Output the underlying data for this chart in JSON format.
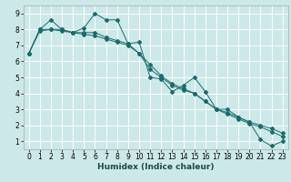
{
  "xlabel": "Humidex (Indice chaleur)",
  "bg_color": "#cce8e8",
  "grid_color": "#ffffff",
  "line_color": "#1a6b6b",
  "xlim": [
    -0.5,
    23.5
  ],
  "ylim": [
    0.5,
    9.5
  ],
  "xticks": [
    0,
    1,
    2,
    3,
    4,
    5,
    6,
    7,
    8,
    9,
    10,
    11,
    12,
    13,
    14,
    15,
    16,
    17,
    18,
    19,
    20,
    21,
    22,
    23
  ],
  "yticks": [
    1,
    2,
    3,
    4,
    5,
    6,
    7,
    8,
    9
  ],
  "line1_x": [
    0,
    1,
    2,
    3,
    4,
    5,
    6,
    7,
    8,
    9,
    10,
    11,
    12,
    13,
    14,
    15,
    16,
    17,
    18,
    19,
    20,
    21,
    22,
    23
  ],
  "line1_y": [
    6.5,
    8.0,
    8.6,
    8.0,
    7.8,
    8.1,
    9.0,
    8.6,
    8.6,
    7.1,
    7.2,
    5.0,
    4.9,
    4.1,
    4.5,
    5.0,
    4.1,
    3.0,
    3.0,
    2.5,
    2.2,
    1.1,
    0.7,
    1.0
  ],
  "line2_x": [
    0,
    1,
    2,
    3,
    4,
    5,
    6,
    7,
    8,
    9,
    10,
    11,
    12,
    13,
    14,
    15,
    16,
    17,
    18,
    19,
    20,
    21,
    22,
    23
  ],
  "line2_y": [
    6.5,
    8.0,
    8.0,
    8.0,
    7.8,
    7.8,
    7.8,
    7.5,
    7.3,
    7.1,
    6.5,
    5.5,
    5.0,
    4.5,
    4.2,
    4.0,
    3.5,
    3.0,
    2.8,
    2.5,
    2.2,
    2.0,
    1.8,
    1.5
  ],
  "line3_x": [
    0,
    1,
    2,
    3,
    4,
    5,
    6,
    7,
    8,
    9,
    10,
    11,
    12,
    13,
    14,
    15,
    16,
    17,
    18,
    19,
    20,
    21,
    22,
    23
  ],
  "line3_y": [
    6.5,
    7.9,
    8.0,
    7.9,
    7.8,
    7.7,
    7.6,
    7.4,
    7.2,
    7.0,
    6.5,
    5.8,
    5.1,
    4.6,
    4.3,
    4.0,
    3.5,
    3.0,
    2.7,
    2.4,
    2.1,
    1.9,
    1.6,
    1.3
  ],
  "tick_fontsize": 5.5,
  "xlabel_fontsize": 6.5
}
